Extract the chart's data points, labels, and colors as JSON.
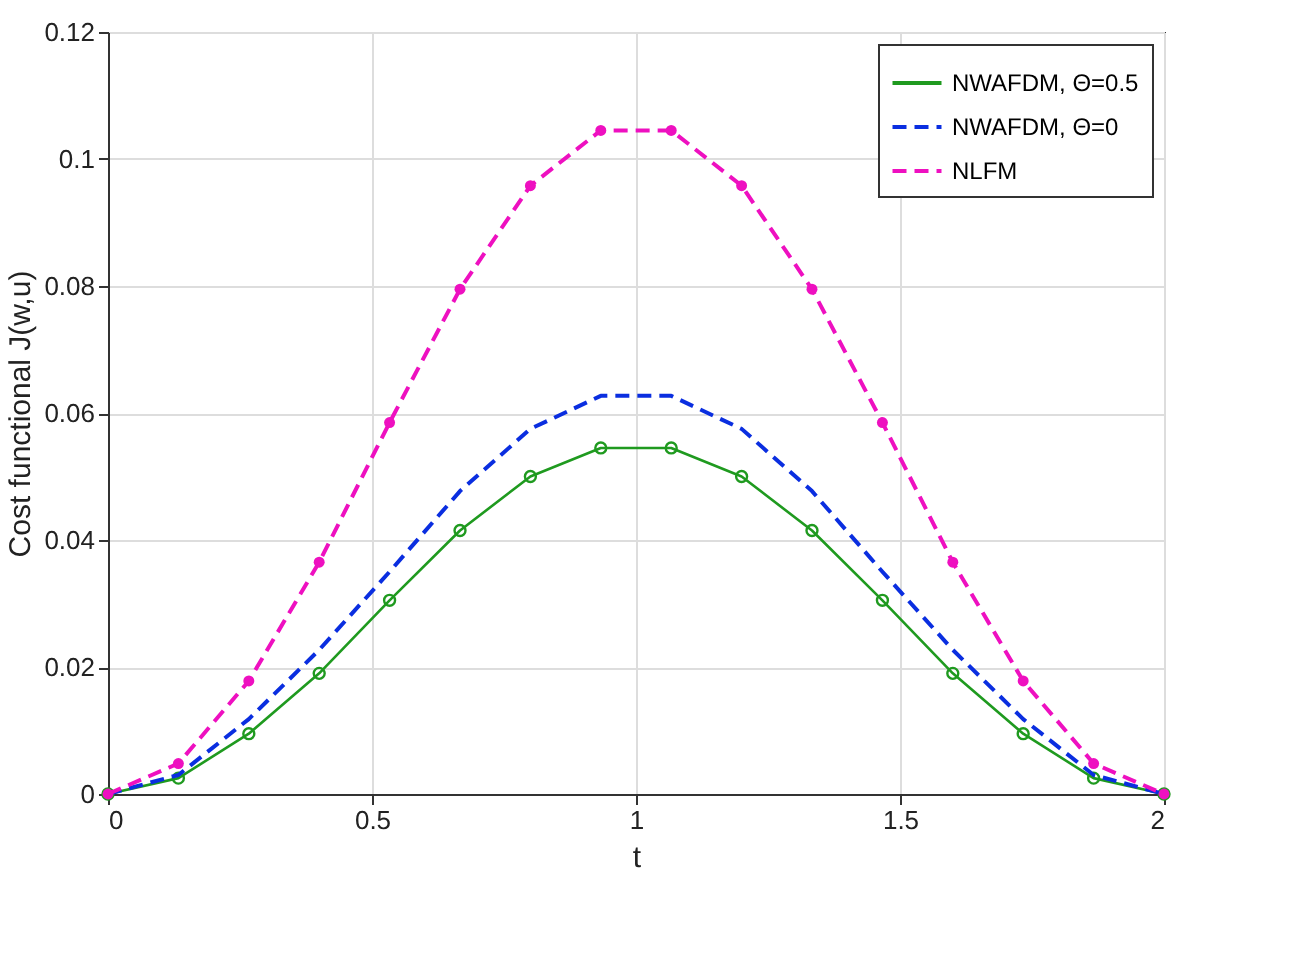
{
  "chart_data": {
    "type": "line",
    "xlabel": "t",
    "ylabel": "Cost functional  J(w,u)",
    "x": [
      0,
      0.1333,
      0.2667,
      0.4,
      0.5333,
      0.6667,
      0.8,
      0.9333,
      1.0667,
      1.2,
      1.3333,
      1.4667,
      1.6,
      1.7333,
      1.8667,
      2
    ],
    "series": [
      {
        "name": "NWAFDM, Θ=0.5",
        "color": "#1f9a1f",
        "marker": "circle",
        "line_style": "solid",
        "values": [
          0,
          0.0025,
          0.0095,
          0.019,
          0.0305,
          0.0415,
          0.05,
          0.0545,
          0.0545,
          0.05,
          0.0415,
          0.0305,
          0.019,
          0.0095,
          0.0025,
          0
        ]
      },
      {
        "name": "NWAFDM, Θ=0",
        "color": "#0a2ee0",
        "marker": "none",
        "line_style": "dashed",
        "values": [
          0,
          0.003,
          0.0118,
          0.0227,
          0.035,
          0.0477,
          0.0575,
          0.0627,
          0.0627,
          0.0575,
          0.0477,
          0.035,
          0.0227,
          0.0118,
          0.003,
          0
        ]
      },
      {
        "name": "NLFM",
        "color": "#ee10c0",
        "marker": "circle",
        "line_style": "dashed",
        "values": [
          0,
          0.0048,
          0.0178,
          0.0365,
          0.0585,
          0.0795,
          0.0958,
          0.1045,
          0.1045,
          0.0958,
          0.0795,
          0.0585,
          0.0365,
          0.0178,
          0.0048,
          0
        ]
      }
    ],
    "xlim": [
      0,
      2
    ],
    "xticks": [
      0,
      0.5,
      1,
      1.5,
      2
    ],
    "ylim": [
      0,
      0.12
    ],
    "yticks": [
      0,
      0.02,
      0.04,
      0.06,
      0.08,
      0.1,
      0.12
    ],
    "grid": true,
    "legend": "top right"
  }
}
